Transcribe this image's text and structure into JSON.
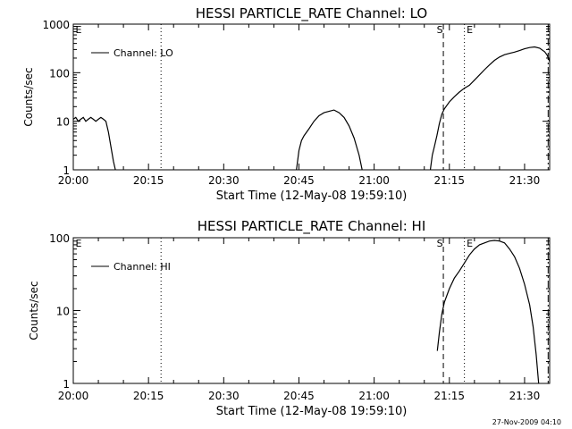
{
  "chart_data": [
    {
      "type": "line",
      "title": "HESSI PARTICLE_RATE Channel: LO",
      "xlabel": "Start Time (12-May-08 19:59:10)",
      "ylabel": "Counts/sec",
      "yscale": "log",
      "xlim": [
        0,
        95
      ],
      "ylim": [
        1,
        1000
      ],
      "xticks": [
        0,
        15,
        30,
        45,
        60,
        75,
        90
      ],
      "xtick_labels": [
        "20:00",
        "20:15",
        "20:30",
        "20:45",
        "21:00",
        "21:15",
        "21:30"
      ],
      "yticks": [
        1,
        10,
        100,
        1000
      ],
      "ytick_labels": [
        "1",
        "10",
        "100",
        "1000"
      ],
      "legend": {
        "placement": "top-left",
        "entries": [
          "Channel: LO"
        ]
      },
      "markers": [
        {
          "x": 17.5,
          "style": "dotted"
        },
        {
          "x": 73.8,
          "style": "dashed",
          "label": "S"
        },
        {
          "x": 78,
          "style": "dotted",
          "label": "E"
        },
        {
          "x": 94.7,
          "style": "dash-dot"
        }
      ],
      "corner_mark": "E",
      "series": [
        {
          "segments": [
            [
              [
                0,
                11
              ],
              [
                0.5,
                12
              ],
              [
                1,
                10
              ],
              [
                1.5,
                11
              ],
              [
                2,
                12
              ],
              [
                2.5,
                10
              ],
              [
                3,
                11
              ],
              [
                3.5,
                12
              ],
              [
                4,
                11
              ],
              [
                4.5,
                10
              ],
              [
                5,
                11
              ],
              [
                5.5,
                12
              ],
              [
                6,
                11
              ],
              [
                6.5,
                10
              ],
              [
                7,
                6
              ],
              [
                7.5,
                3
              ],
              [
                8,
                1.5
              ],
              [
                8.4,
                1
              ]
            ],
            [
              [
                44.5,
                1
              ],
              [
                45,
                2.5
              ],
              [
                45.5,
                4
              ],
              [
                46,
                5
              ],
              [
                47,
                7
              ],
              [
                48,
                10
              ],
              [
                49,
                13
              ],
              [
                50,
                15
              ],
              [
                51,
                16
              ],
              [
                52,
                17
              ],
              [
                53,
                15
              ],
              [
                54,
                12
              ],
              [
                55,
                8
              ],
              [
                56,
                4.5
              ],
              [
                57,
                2
              ],
              [
                57.6,
                1
              ]
            ],
            [
              [
                71.2,
                1
              ],
              [
                71.6,
                2
              ],
              [
                72,
                3
              ],
              [
                72.5,
                5
              ],
              [
                73,
                9
              ],
              [
                73.5,
                14
              ],
              [
                74,
                18
              ],
              [
                75,
                25
              ],
              [
                76,
                32
              ],
              [
                77,
                40
              ],
              [
                78,
                48
              ],
              [
                79,
                55
              ],
              [
                80,
                70
              ],
              [
                81,
                90
              ],
              [
                82,
                115
              ],
              [
                83,
                145
              ],
              [
                84,
                180
              ],
              [
                85,
                210
              ],
              [
                86,
                235
              ],
              [
                87,
                250
              ],
              [
                88,
                265
              ],
              [
                89,
                285
              ],
              [
                90,
                310
              ],
              [
                91,
                330
              ],
              [
                92,
                340
              ],
              [
                93,
                320
              ],
              [
                94,
                270
              ],
              [
                94.5,
                230
              ],
              [
                95,
                170
              ]
            ]
          ]
        }
      ]
    },
    {
      "type": "line",
      "title": "HESSI PARTICLE_RATE Channel: HI",
      "xlabel": "Start Time (12-May-08 19:59:10)",
      "ylabel": "Counts/sec",
      "yscale": "log",
      "xlim": [
        0,
        95
      ],
      "ylim": [
        1,
        100
      ],
      "xticks": [
        0,
        15,
        30,
        45,
        60,
        75,
        90
      ],
      "xtick_labels": [
        "20:00",
        "20:15",
        "20:30",
        "20:45",
        "21:00",
        "21:15",
        "21:30"
      ],
      "yticks": [
        1,
        10,
        100
      ],
      "ytick_labels": [
        "1",
        "10",
        "100"
      ],
      "legend": {
        "placement": "top-left",
        "entries": [
          "Channel: HI"
        ]
      },
      "markers": [
        {
          "x": 17.5,
          "style": "dotted"
        },
        {
          "x": 73.8,
          "style": "dashed",
          "label": "S"
        },
        {
          "x": 78,
          "style": "dotted",
          "label": "E"
        },
        {
          "x": 94.7,
          "style": "dash-dot"
        }
      ],
      "corner_mark": "E",
      "series": [
        {
          "segments": [
            [
              [
                72.6,
                2.8
              ],
              [
                73,
                5
              ],
              [
                73.5,
                9
              ],
              [
                74,
                13
              ],
              [
                75,
                20
              ],
              [
                76,
                28
              ],
              [
                77,
                35
              ],
              [
                78,
                45
              ],
              [
                79,
                58
              ],
              [
                80,
                70
              ],
              [
                81,
                80
              ],
              [
                82,
                85
              ],
              [
                83,
                90
              ],
              [
                84,
                92
              ],
              [
                85,
                90
              ],
              [
                86,
                85
              ],
              [
                87,
                70
              ],
              [
                88,
                55
              ],
              [
                89,
                38
              ],
              [
                90,
                23
              ],
              [
                91,
                12
              ],
              [
                91.7,
                6
              ],
              [
                92.3,
                2.5
              ],
              [
                92.8,
                1
              ]
            ]
          ]
        }
      ]
    }
  ],
  "footer": {
    "date": "27-Nov-2009 04:10"
  }
}
